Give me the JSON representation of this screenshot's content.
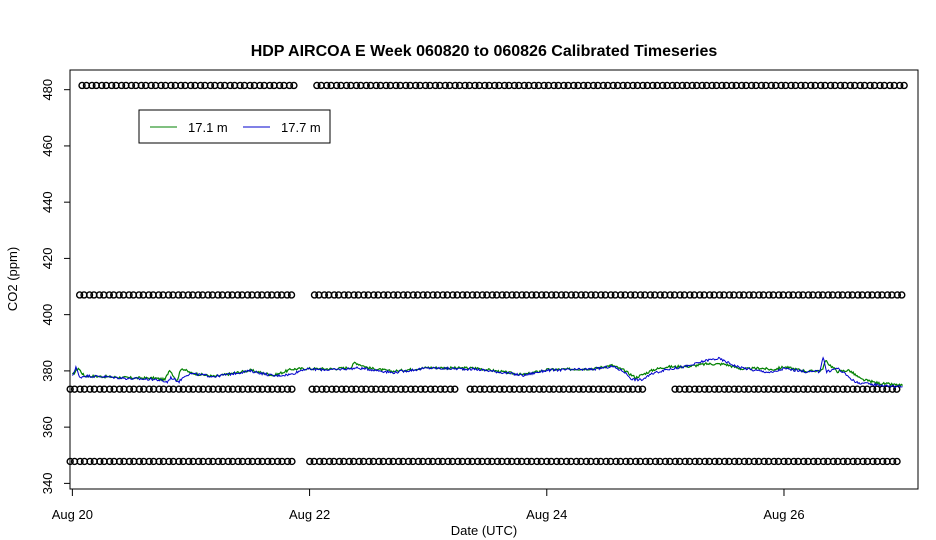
{
  "chart_data": {
    "type": "line",
    "title": "HDP AIRCOA E  Week 060820 to 060826  Calibrated Timeseries",
    "xlabel": "Date (UTC)",
    "ylabel": "CO2 (ppm)",
    "x_range_days_aug": [
      19.98,
      27.13
    ],
    "ylim": [
      338,
      487
    ],
    "x_ticks": [
      {
        "day": 20,
        "label": "Aug 20"
      },
      {
        "day": 22,
        "label": "Aug 22"
      },
      {
        "day": 24,
        "label": "Aug 24"
      },
      {
        "day": 26,
        "label": "Aug 26"
      }
    ],
    "y_ticks": [
      340,
      360,
      380,
      400,
      420,
      440,
      460,
      480
    ],
    "legend": {
      "position": "top-left",
      "entries": [
        {
          "name": "17.1 m",
          "color": "#008000"
        },
        {
          "name": "17.7 m",
          "color": "#0000cc"
        }
      ]
    },
    "series": [
      {
        "name": "17.1 m",
        "color": "#008000",
        "x_days": [
          20.0,
          20.05,
          20.1,
          20.25,
          20.5,
          20.7,
          20.78,
          20.82,
          20.88,
          20.92,
          21.0,
          21.2,
          21.5,
          21.7,
          21.85,
          21.95,
          22.2,
          22.35,
          22.38,
          22.5,
          22.7,
          23.0,
          23.2,
          23.4,
          23.6,
          23.8,
          24.0,
          24.2,
          24.4,
          24.55,
          24.65,
          24.75,
          24.9,
          25.0,
          25.2,
          25.35,
          25.5,
          25.65,
          25.8,
          25.9,
          26.0,
          26.2,
          26.32,
          26.35,
          26.45,
          26.55,
          26.65,
          26.8,
          26.95,
          27.0
        ],
        "y_ppm": [
          378.5,
          381,
          378.2,
          378,
          377.5,
          377.4,
          376.8,
          380.5,
          376.4,
          381,
          379.2,
          378,
          380.2,
          378.4,
          380.6,
          380.8,
          380.7,
          381.2,
          383,
          381,
          379.8,
          381.2,
          381,
          381,
          379.8,
          378.6,
          380.4,
          380.6,
          380.8,
          382,
          380.2,
          377.6,
          380.4,
          381.4,
          381.6,
          382.5,
          382.4,
          380.6,
          381,
          380.4,
          381.4,
          379.8,
          380.2,
          383.5,
          379.8,
          380.2,
          377,
          375.6,
          375,
          374.8
        ]
      },
      {
        "name": "17.7 m",
        "color": "#0000cc",
        "x_days": [
          20.0,
          20.03,
          20.06,
          20.1,
          20.25,
          20.5,
          20.7,
          20.8,
          20.83,
          20.9,
          20.95,
          21.0,
          21.2,
          21.5,
          21.7,
          21.85,
          21.95,
          22.2,
          22.4,
          22.5,
          22.7,
          23.0,
          23.2,
          23.4,
          23.6,
          23.8,
          24.0,
          24.2,
          24.4,
          24.55,
          24.65,
          24.72,
          24.8,
          24.9,
          25.0,
          25.2,
          25.35,
          25.45,
          25.6,
          25.75,
          25.9,
          26.0,
          26.2,
          26.3,
          26.33,
          26.36,
          26.45,
          26.55,
          26.6,
          26.7,
          26.8,
          26.9,
          27.0
        ],
        "y_ppm": [
          378,
          381.5,
          377.6,
          378.2,
          378,
          377.2,
          377,
          376,
          377.6,
          376.2,
          378.4,
          379,
          378,
          380,
          378.2,
          378.8,
          380.6,
          380.4,
          381,
          380.6,
          379.4,
          381,
          380.8,
          380.6,
          379.6,
          378.4,
          380.2,
          380.4,
          380.6,
          381.6,
          379.8,
          377,
          376.8,
          379.2,
          380.4,
          381.8,
          383.8,
          384.4,
          381.6,
          380.2,
          379.4,
          380.8,
          379.6,
          379.8,
          385,
          379.6,
          381,
          377.8,
          376,
          375.4,
          375,
          374.6,
          374.4
        ]
      }
    ],
    "calibration_markers": {
      "marker": "open circle",
      "levels_ppm": [
        481.5,
        407,
        373.5,
        347.8
      ],
      "runs": [
        {
          "level_ppm": 481.5,
          "x_start": 20.1,
          "x_end": 21.87,
          "gap_at": []
        },
        {
          "level_ppm": 481.5,
          "x_start": 22.08,
          "x_end": 27.0,
          "gap_at": []
        },
        {
          "level_ppm": 407,
          "x_start": 20.08,
          "x_end": 21.87,
          "gap_at": []
        },
        {
          "level_ppm": 407,
          "x_start": 22.06,
          "x_end": 27.0,
          "gap_at": []
        },
        {
          "level_ppm": 373.5,
          "x_start": 20.0,
          "x_end": 21.85,
          "gap_at": []
        },
        {
          "level_ppm": 373.5,
          "x_start": 22.04,
          "x_end": 24.85,
          "gap_at": [
            23.3
          ]
        },
        {
          "level_ppm": 373.5,
          "x_start": 25.1,
          "x_end": 27.0,
          "gap_at": []
        },
        {
          "level_ppm": 347.8,
          "x_start": 20.0,
          "x_end": 21.87,
          "gap_at": []
        },
        {
          "level_ppm": 347.8,
          "x_start": 22.02,
          "x_end": 27.0,
          "gap_at": []
        }
      ],
      "spacing_days": 0.0833
    }
  }
}
